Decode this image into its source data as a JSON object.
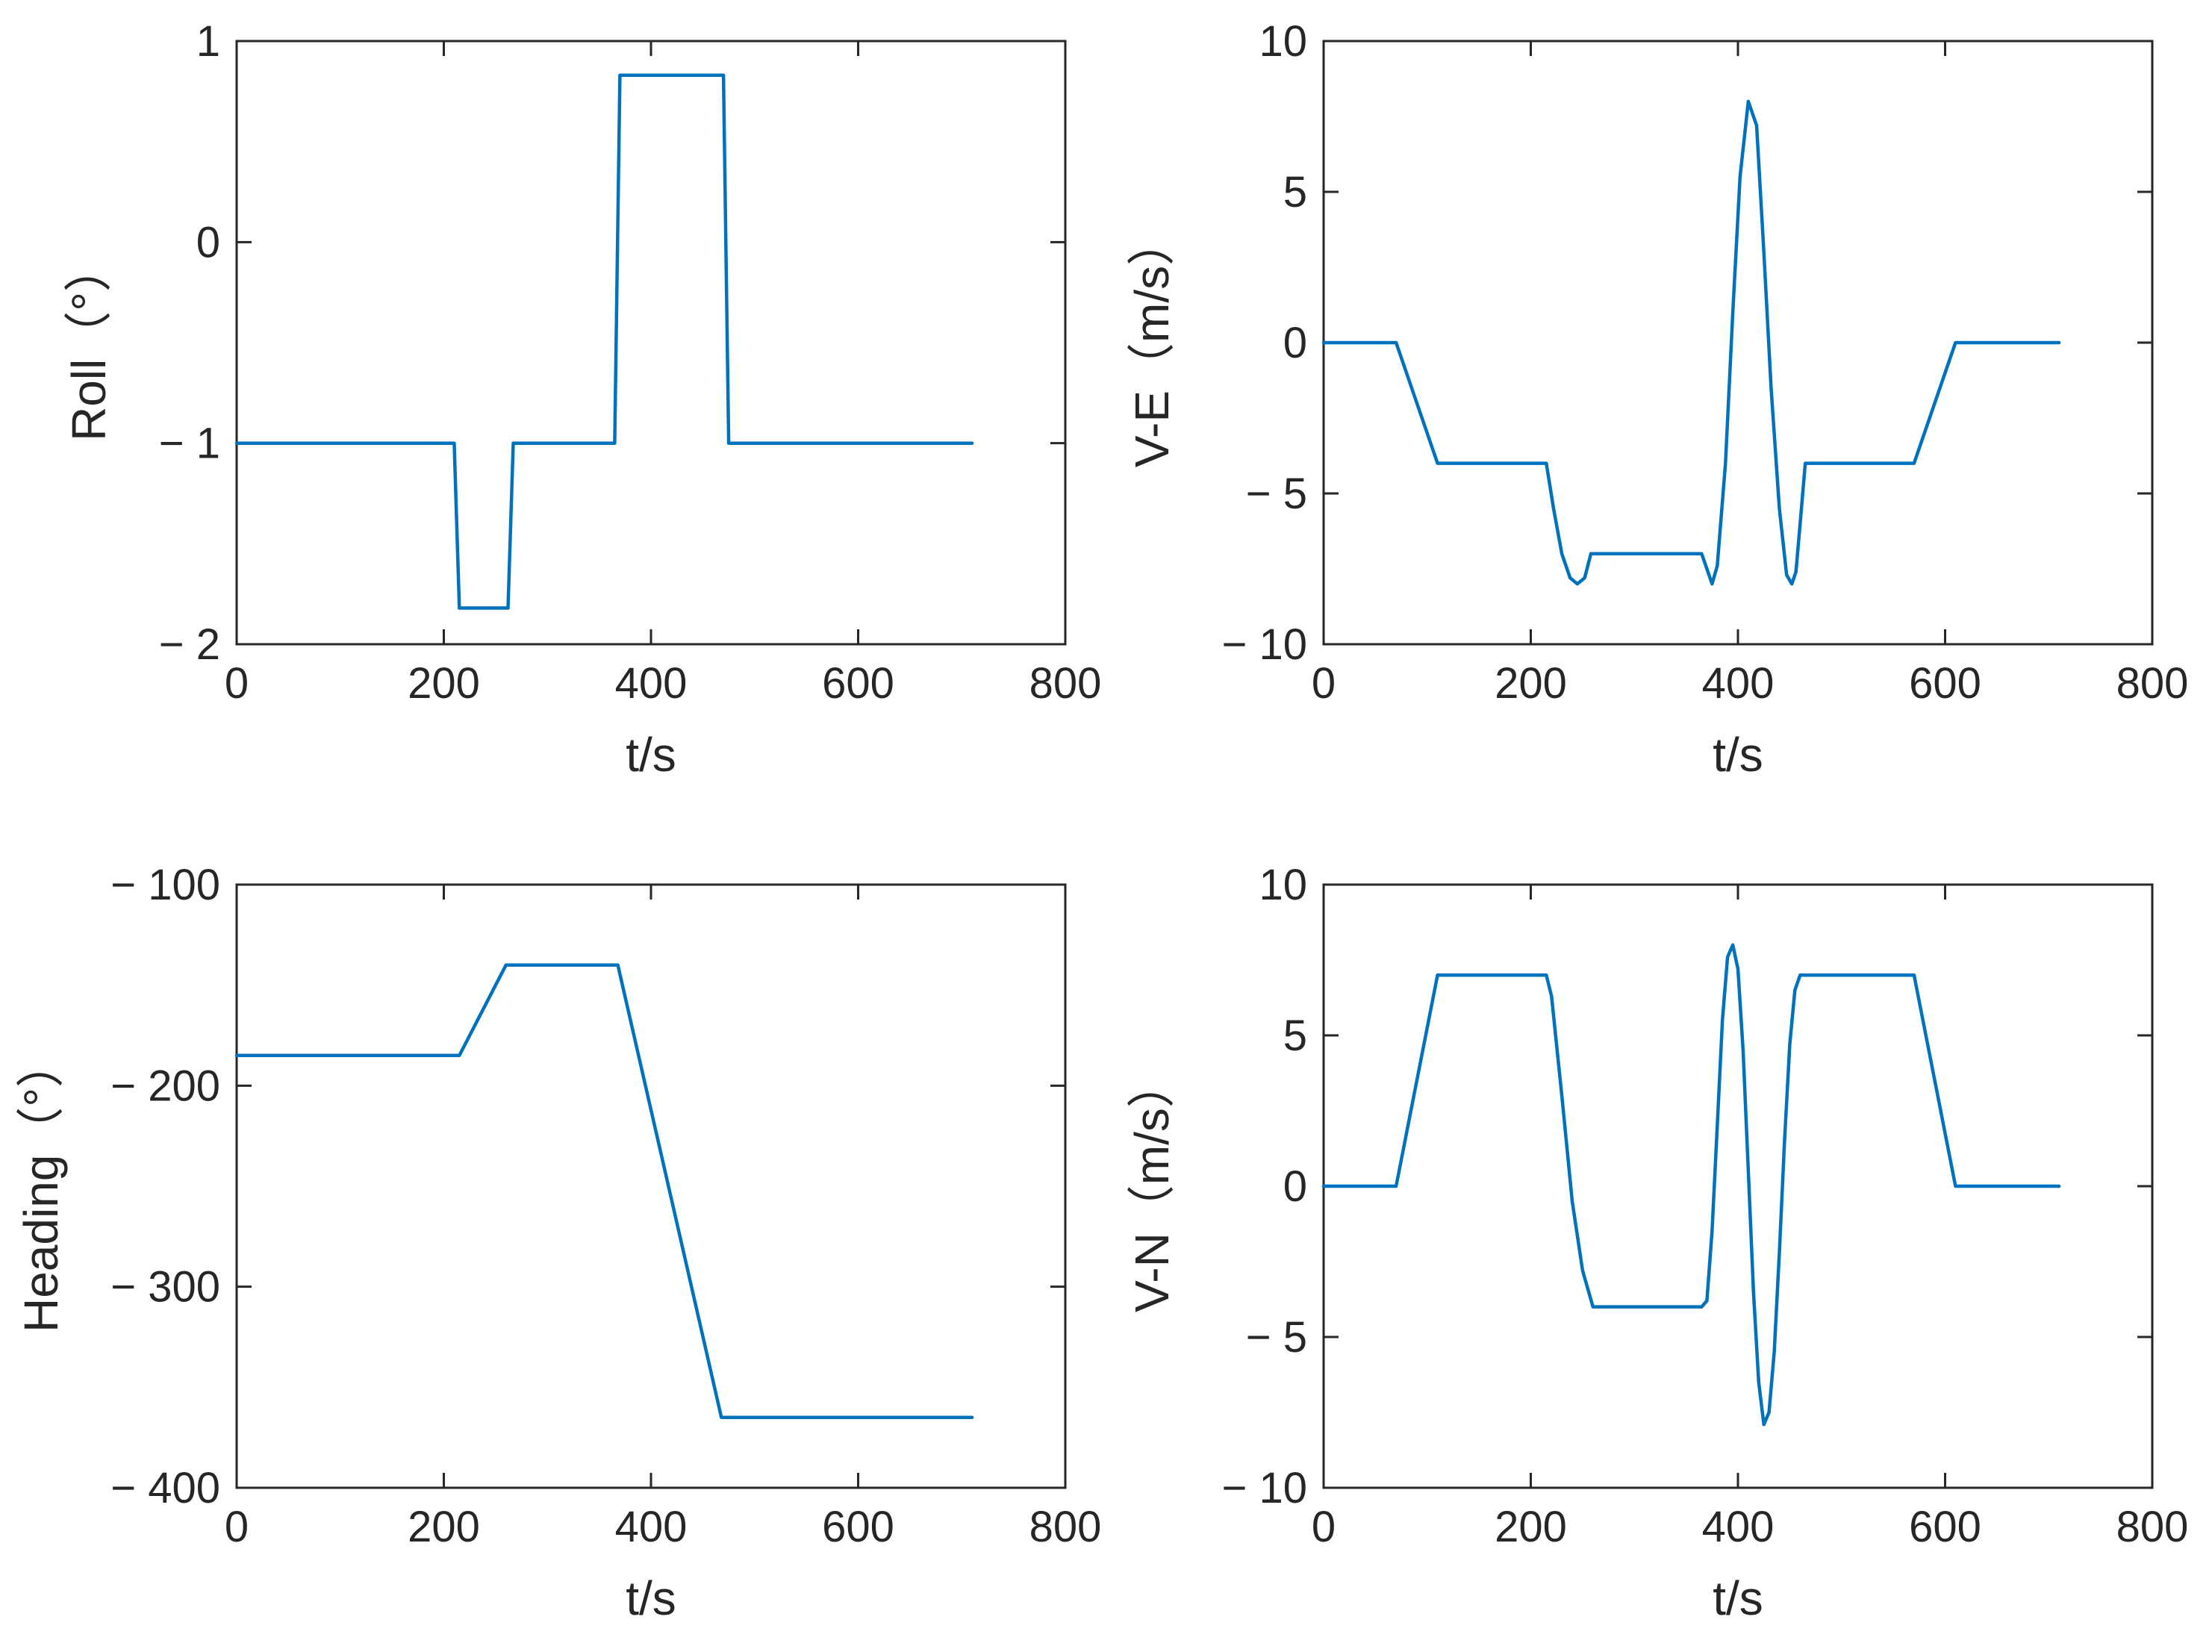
{
  "chart_data": [
    {
      "id": "roll",
      "type": "line",
      "xlabel": "t/s",
      "ylabel": "Roll（°）",
      "xlim": [
        0,
        800
      ],
      "ylim": [
        -2,
        1
      ],
      "xticks": [
        0,
        200,
        400,
        600,
        800
      ],
      "xtick_labels": [
        "0",
        "200",
        "400",
        "600",
        "800"
      ],
      "yticks": [
        1,
        0,
        -1,
        -2
      ],
      "ytick_labels": [
        "1",
        "0",
        "− 1",
        "− 2"
      ],
      "grid": false,
      "series": [
        {
          "name": "Roll",
          "color": "#0072BD",
          "x": [
            0,
            210,
            215,
            262,
            267,
            365,
            370,
            470,
            475,
            710
          ],
          "y": [
            -1,
            -1,
            -1.82,
            -1.82,
            -1,
            -1,
            0.83,
            0.83,
            -1,
            -1
          ]
        }
      ]
    },
    {
      "id": "ve",
      "type": "line",
      "xlabel": "t/s",
      "ylabel": "V-E（m/s）",
      "xlim": [
        0,
        800
      ],
      "ylim": [
        -10,
        10
      ],
      "xticks": [
        0,
        200,
        400,
        600,
        800
      ],
      "xtick_labels": [
        "0",
        "200",
        "400",
        "600",
        "800"
      ],
      "yticks": [
        10,
        5,
        0,
        -5,
        -10
      ],
      "ytick_labels": [
        "10",
        "5",
        "0",
        "− 5",
        "− 10"
      ],
      "grid": false,
      "series": [
        {
          "name": "V-E",
          "color": "#0072BD",
          "x": [
            0,
            70,
            110,
            215,
            222,
            230,
            238,
            245,
            252,
            258,
            265,
            365,
            370,
            375,
            380,
            388,
            395,
            402,
            410,
            418,
            425,
            432,
            440,
            447,
            452,
            456,
            460,
            465,
            570,
            610,
            710
          ],
          "y": [
            0,
            0,
            -4,
            -4,
            -5.5,
            -7,
            -7.8,
            -8,
            -7.8,
            -7,
            -7,
            -7,
            -7.5,
            -8,
            -7.4,
            -4,
            1,
            5.5,
            8,
            7.2,
            3,
            -1.5,
            -5.5,
            -7.7,
            -8,
            -7.6,
            -6,
            -4,
            -4,
            0,
            0
          ]
        }
      ]
    },
    {
      "id": "heading",
      "type": "line",
      "xlabel": "t/s",
      "ylabel": "Heading（°）",
      "xlim": [
        0,
        800
      ],
      "ylim": [
        -400,
        -100
      ],
      "xticks": [
        0,
        200,
        400,
        600,
        800
      ],
      "xtick_labels": [
        "0",
        "200",
        "400",
        "600",
        "800"
      ],
      "yticks": [
        -100,
        -200,
        -300,
        -400
      ],
      "ytick_labels": [
        "− 100",
        "− 200",
        "− 300",
        "− 400"
      ],
      "grid": false,
      "series": [
        {
          "name": "Heading",
          "color": "#0072BD",
          "x": [
            0,
            215,
            260,
            368,
            468,
            710
          ],
          "y": [
            -185,
            -185,
            -140,
            -140,
            -365,
            -365
          ]
        }
      ]
    },
    {
      "id": "vn",
      "type": "line",
      "xlabel": "t/s",
      "ylabel": "V-N（m/s）",
      "xlim": [
        0,
        800
      ],
      "ylim": [
        -10,
        10
      ],
      "xticks": [
        0,
        200,
        400,
        600,
        800
      ],
      "xtick_labels": [
        "0",
        "200",
        "400",
        "600",
        "800"
      ],
      "yticks": [
        10,
        5,
        0,
        -5,
        -10
      ],
      "ytick_labels": [
        "10",
        "5",
        "0",
        "− 5",
        "− 10"
      ],
      "grid": false,
      "series": [
        {
          "name": "V-N",
          "color": "#0072BD",
          "x": [
            0,
            70,
            110,
            215,
            220,
            230,
            240,
            250,
            260,
            365,
            370,
            375,
            380,
            385,
            390,
            395,
            400,
            405,
            410,
            415,
            420,
            425,
            430,
            435,
            440,
            445,
            450,
            455,
            460,
            465,
            570,
            610,
            710
          ],
          "y": [
            0,
            0,
            7,
            7,
            6.3,
            3,
            -0.5,
            -2.8,
            -4,
            -4,
            -3.8,
            -1.5,
            2,
            5.5,
            7.6,
            8,
            7.2,
            4.5,
            0.5,
            -3.5,
            -6.5,
            -7.9,
            -7.5,
            -5.5,
            -2.2,
            1.5,
            4.7,
            6.5,
            7,
            7,
            7,
            0,
            0
          ]
        }
      ]
    }
  ]
}
